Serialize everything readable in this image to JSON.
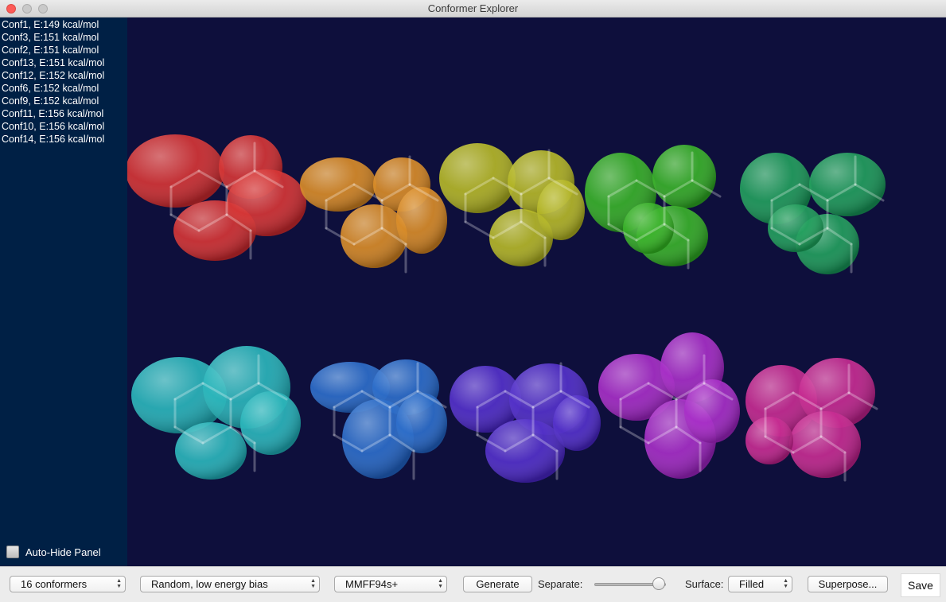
{
  "window": {
    "title": "Conformer Explorer"
  },
  "conformers": [
    "Conf1, E:149 kcal/mol",
    "Conf3, E:151 kcal/mol",
    "Conf2, E:151 kcal/mol",
    "Conf13, E:151 kcal/mol",
    "Conf12, E:152 kcal/mol",
    "Conf6, E:152 kcal/mol",
    "Conf9, E:152 kcal/mol",
    "Conf11, E:156 kcal/mol",
    "Conf10, E:156 kcal/mol",
    "Conf14, E:156 kcal/mol"
  ],
  "panel": {
    "auto_hide_label": "Auto-Hide Panel",
    "auto_hide_checked": false
  },
  "viewer": {
    "background": "#0e0f3c",
    "molecule_colors": [
      "#d42a2a",
      "#d8861c",
      "#b3b51c",
      "#2fae1e",
      "#169a54",
      "#1fb2b8",
      "#2166c8",
      "#4a26c8",
      "#a324c4",
      "#c4208c"
    ]
  },
  "toolbar": {
    "conformer_count": "16 conformers",
    "method": "Random, low energy bias",
    "forcefield": "MMFF94s+",
    "generate_label": "Generate",
    "separate_label": "Separate:",
    "separate_value": 0.9,
    "surface_label": "Surface:",
    "surface_value": "Filled",
    "superpose_label": "Superpose...",
    "save_label": "Save"
  }
}
